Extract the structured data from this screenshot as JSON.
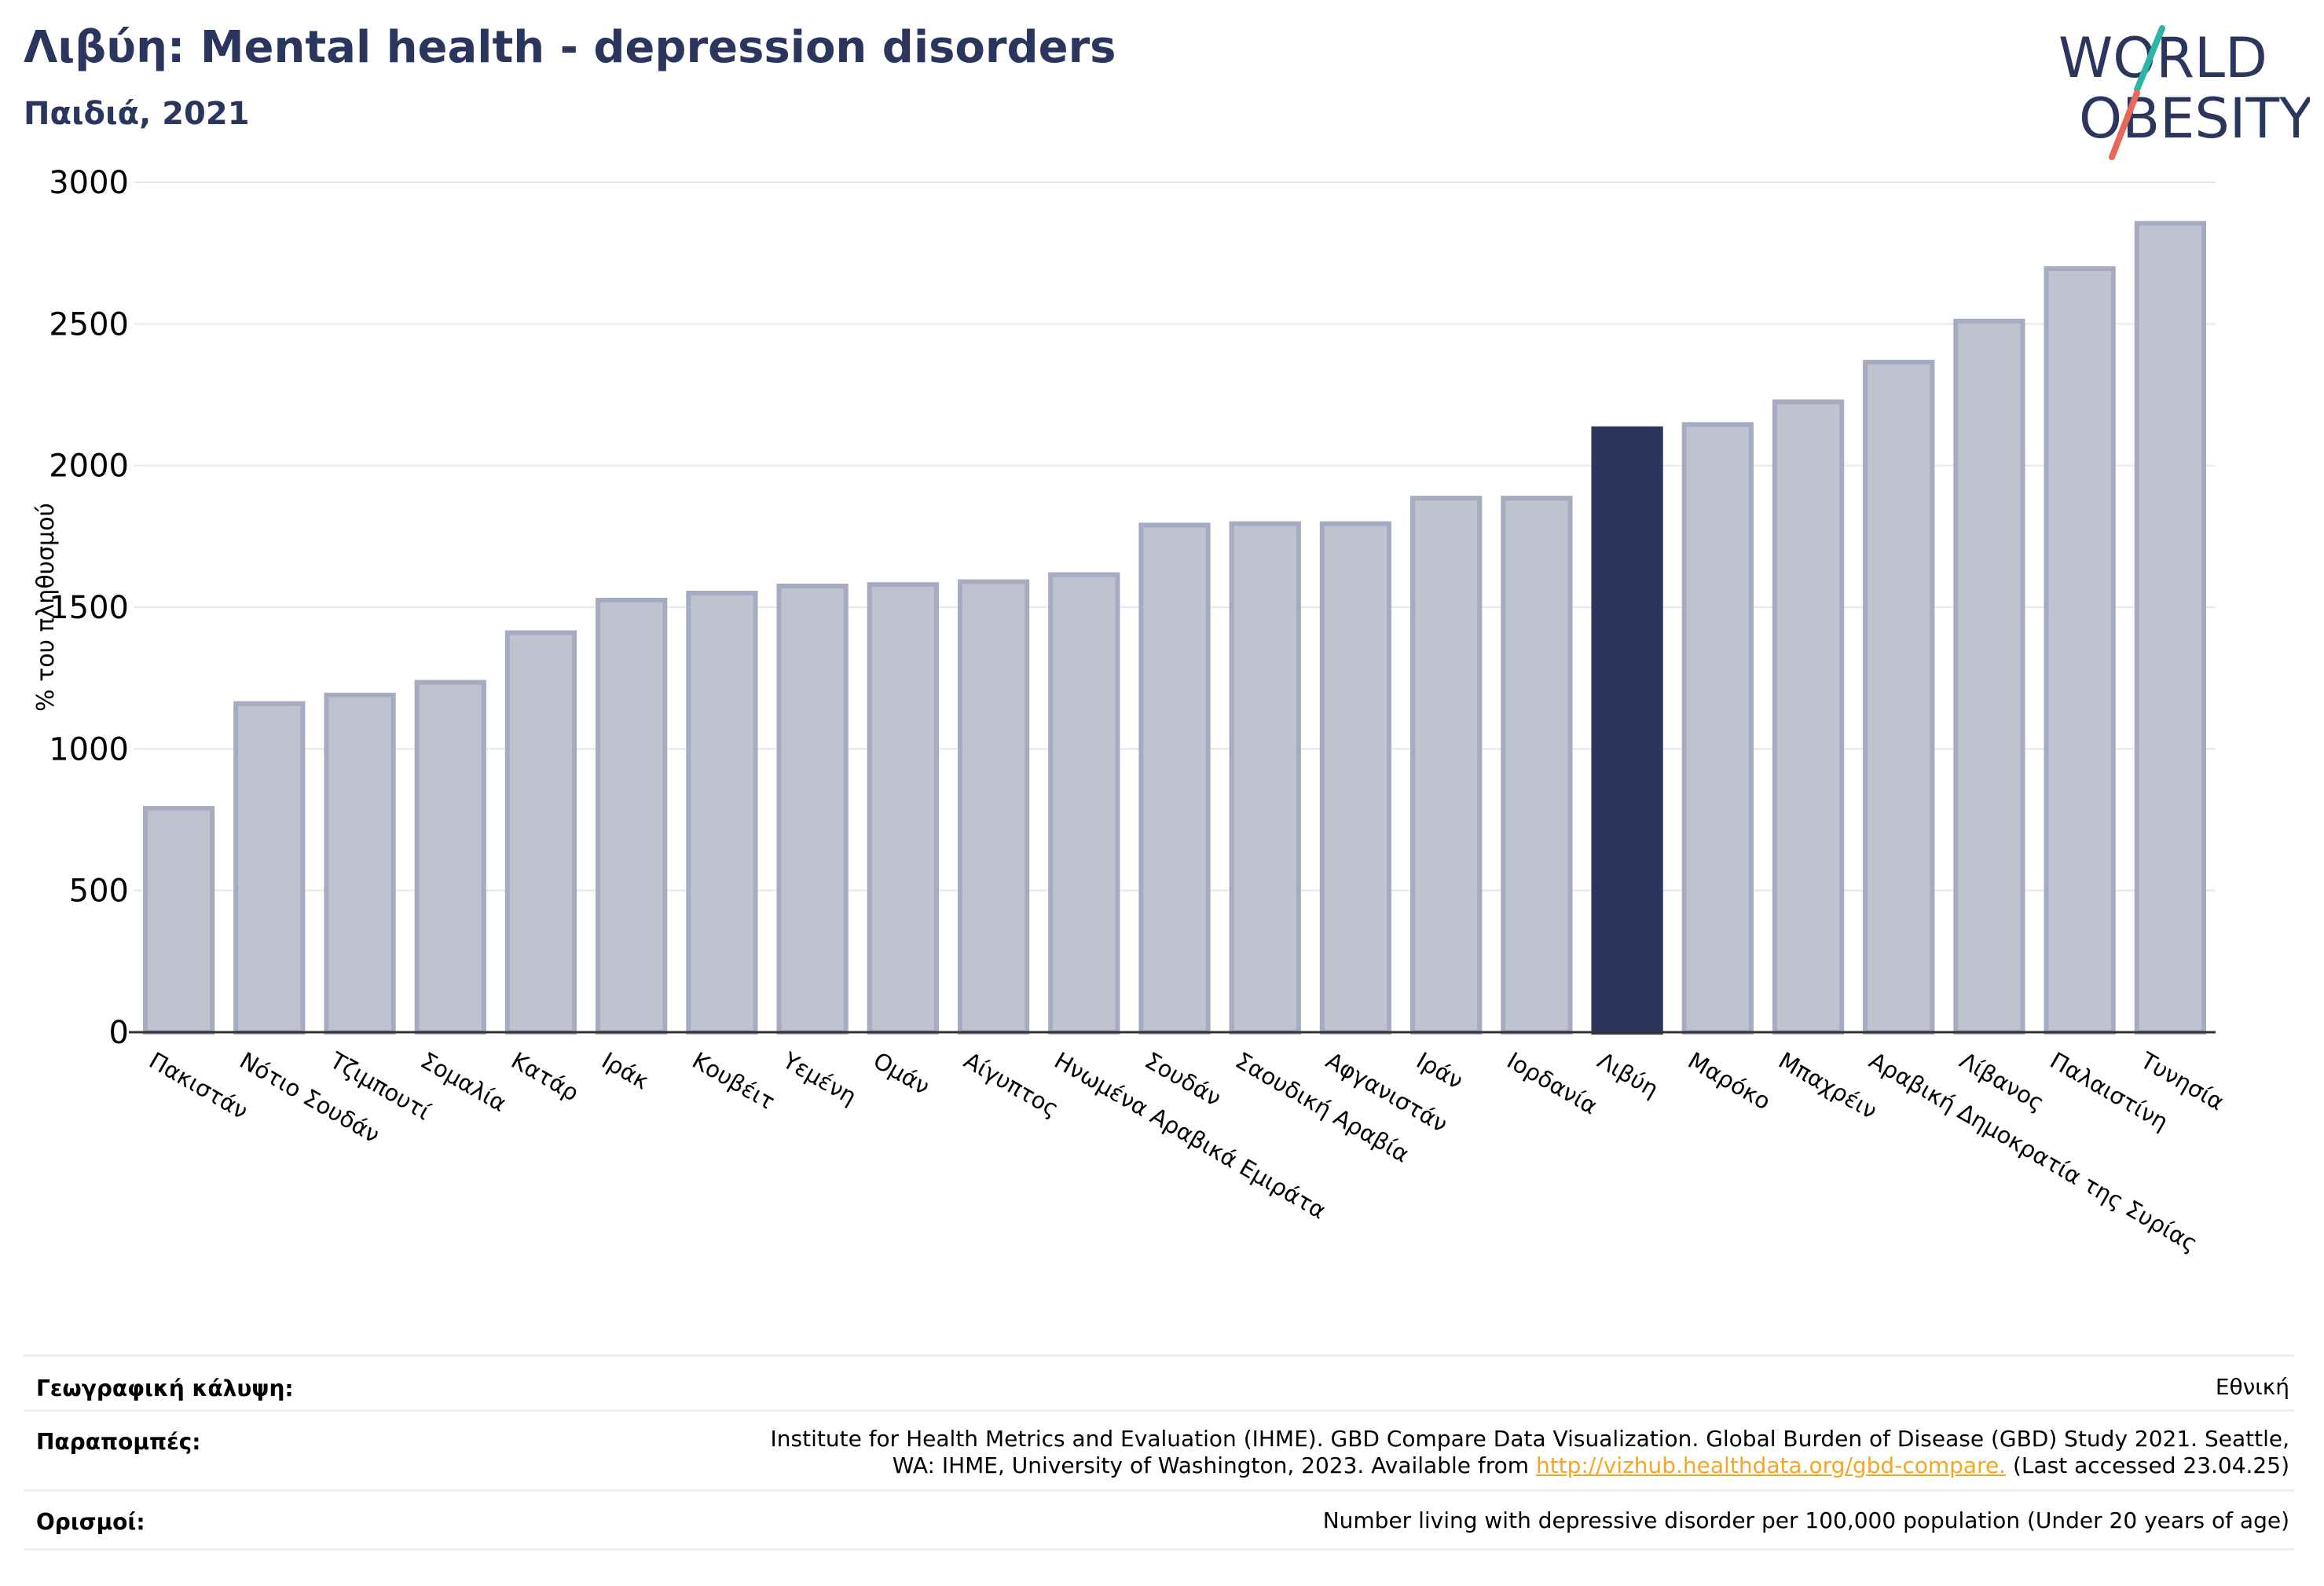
{
  "header": {
    "title": "Λιβύη: Mental health - depression disorders",
    "subtitle": "Παιδιά, 2021"
  },
  "logo": {
    "line1": "WORLD",
    "line2": "OBESITY"
  },
  "chart_data": {
    "type": "bar",
    "title": "Λιβύη: Mental health - depression disorders",
    "subtitle": "Παιδιά, 2021",
    "xlabel": "",
    "ylabel": "% του πληθυσμού",
    "ylim": [
      0,
      3000
    ],
    "yticks": [
      0,
      500,
      1000,
      1500,
      2000,
      2500,
      3000
    ],
    "grid": true,
    "highlight": "Λιβύη",
    "colors": {
      "bar": "#bfc3d0",
      "bar_edge": "#a6abc2",
      "highlight": "#2b365f",
      "grid": "#e6e8ee",
      "axis": "#333333"
    },
    "categories": [
      "Πακιστάν",
      "Νότιο Σουδάν",
      "Τζιμπουτί",
      "Σομαλία",
      "Κατάρ",
      "Ιράκ",
      "Κουβέιτ",
      "Υεμένη",
      "Ομάν",
      "Αίγυπτος",
      "Ηνωμένα Αραβικά Εμιράτα",
      "Σουδάν",
      "Σαουδική Αραβία",
      "Αφγανιστάν",
      "Ιράν",
      "Ιορδανία",
      "Λιβύη",
      "Μαρόκο",
      "Μπαχρέιν",
      "Αραβική Δημοκρατία της Συρίας",
      "Λίβανος",
      "Παλαιστίνη",
      "Τυνησία"
    ],
    "values": [
      790,
      1160,
      1190,
      1235,
      1410,
      1525,
      1550,
      1575,
      1580,
      1590,
      1615,
      1790,
      1795,
      1795,
      1885,
      1885,
      2130,
      2145,
      2225,
      2365,
      2510,
      2695,
      2855
    ]
  },
  "footer": {
    "coverage_label": "Γεωγραφική κάλυψη:",
    "coverage_value": "Εθνική",
    "refs_label": "Παραπομπές:",
    "refs_line1": "Institute for Health Metrics and Evaluation (IHME). GBD Compare Data Visualization. Global Burden of Disease (GBD) Study 2021. Seattle,",
    "refs_line2_pre": "WA: IHME, University of Washington, 2023. Available from ",
    "refs_link": "http://vizhub.healthdata.org/gbd-compare.",
    "refs_line2_post": " (Last accessed 23.04.25)",
    "defs_label": "Ορισμοί:",
    "defs_value": "Number living with depressive disorder per 100,000 population (Under 20 years of age)"
  }
}
